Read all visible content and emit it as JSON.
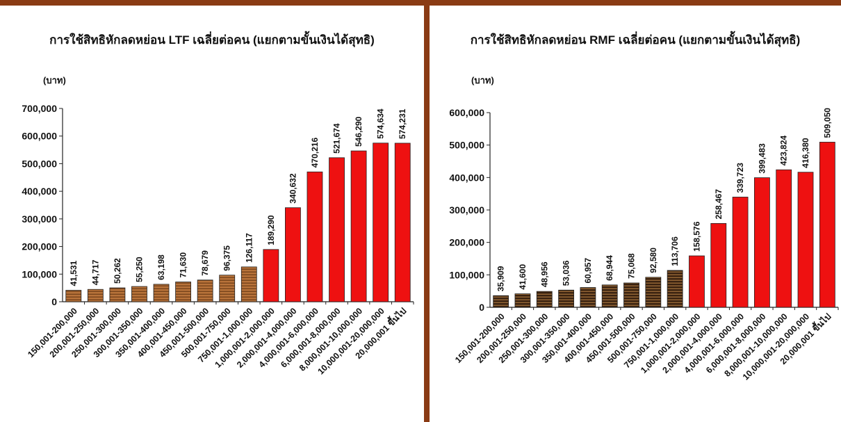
{
  "chart_data": [
    {
      "type": "bar",
      "title": "การใช้สิทธิหักลดหย่อน LTF เฉลี่ยต่อคน (แยกตามขั้นเงินได้สุทธิ)",
      "ylabel": "(บาท)",
      "xlabel": "",
      "ylim": [
        0,
        700000
      ],
      "yticks": [
        "0",
        "100,000",
        "200,000",
        "300,000",
        "400,000",
        "500,000",
        "600,000",
        "700,000"
      ],
      "categories": [
        "150,001-200,000",
        "200,001-250,000",
        "250,001-300,000",
        "300,001-350,000",
        "350,001-400,000",
        "400,001-450,000",
        "450,001-500,000",
        "500,001-750,000",
        "750,001-1,000,000",
        "1,000,001-2,000,000",
        "2,000,001-4,000,000",
        "4,000,001-6,000,000",
        "6,000,001-8,000,000",
        "8,000,001-10,000,000",
        "10,000,001-20,000,000",
        "20,000,001 ขึ้นไป"
      ],
      "values": [
        41531,
        44717,
        50262,
        55250,
        63198,
        71630,
        78679,
        96375,
        126117,
        189290,
        340632,
        470216,
        521674,
        546290,
        574634,
        574231
      ],
      "value_labels": [
        "41,531",
        "44,717",
        "50,262",
        "55,250",
        "63,198",
        "71,630",
        "78,679",
        "96,375",
        "126,117",
        "189,290",
        "340,632",
        "470,216",
        "521,674",
        "546,290",
        "574,634",
        "574,231"
      ],
      "highlight_from_index": 9,
      "colors": {
        "low": "#b06a2e",
        "high": "#ee1111"
      },
      "grid": false,
      "legend": "none"
    },
    {
      "type": "bar",
      "title": "การใช้สิทธิหักลดหย่อน RMF เฉลี่ยต่อคน (แยกตามขั้นเงินได้สุทธิ)",
      "ylabel": "(บาท)",
      "xlabel": "",
      "ylim": [
        0,
        600000
      ],
      "yticks": [
        "0",
        "100,000",
        "200,000",
        "300,000",
        "400,000",
        "500,000",
        "600,000"
      ],
      "categories": [
        "150,001-200,000",
        "200,001-250,000",
        "250,001-300,000",
        "300,001-350,000",
        "350,001-400,000",
        "400,001-450,000",
        "450,001-500,000",
        "500,001-750,000",
        "750,001-1,000,000",
        "1,000,001-2,000,000",
        "2,000,001-4,000,000",
        "4,000,001-6,000,000",
        "6,000,001-8,000,000",
        "8,000,001-10,000,000",
        "10,000,001-20,000,000",
        "20,000,001 ขึ้นไป"
      ],
      "values": [
        35909,
        41600,
        48956,
        53036,
        60957,
        68944,
        75068,
        92580,
        113706,
        158576,
        258467,
        339723,
        399483,
        423824,
        416380,
        509050
      ],
      "value_labels": [
        "35,909",
        "41,600",
        "48,956",
        "53,036",
        "60,957",
        "68,944",
        "75,068",
        "92,580",
        "113,706",
        "158,576",
        "258,467",
        "339,723",
        "399,483",
        "423,824",
        "416,380",
        "509,050"
      ],
      "highlight_from_index": 9,
      "colors": {
        "low": "#2a1a0c",
        "high": "#ee1111"
      },
      "grid": false,
      "legend": "none"
    }
  ]
}
